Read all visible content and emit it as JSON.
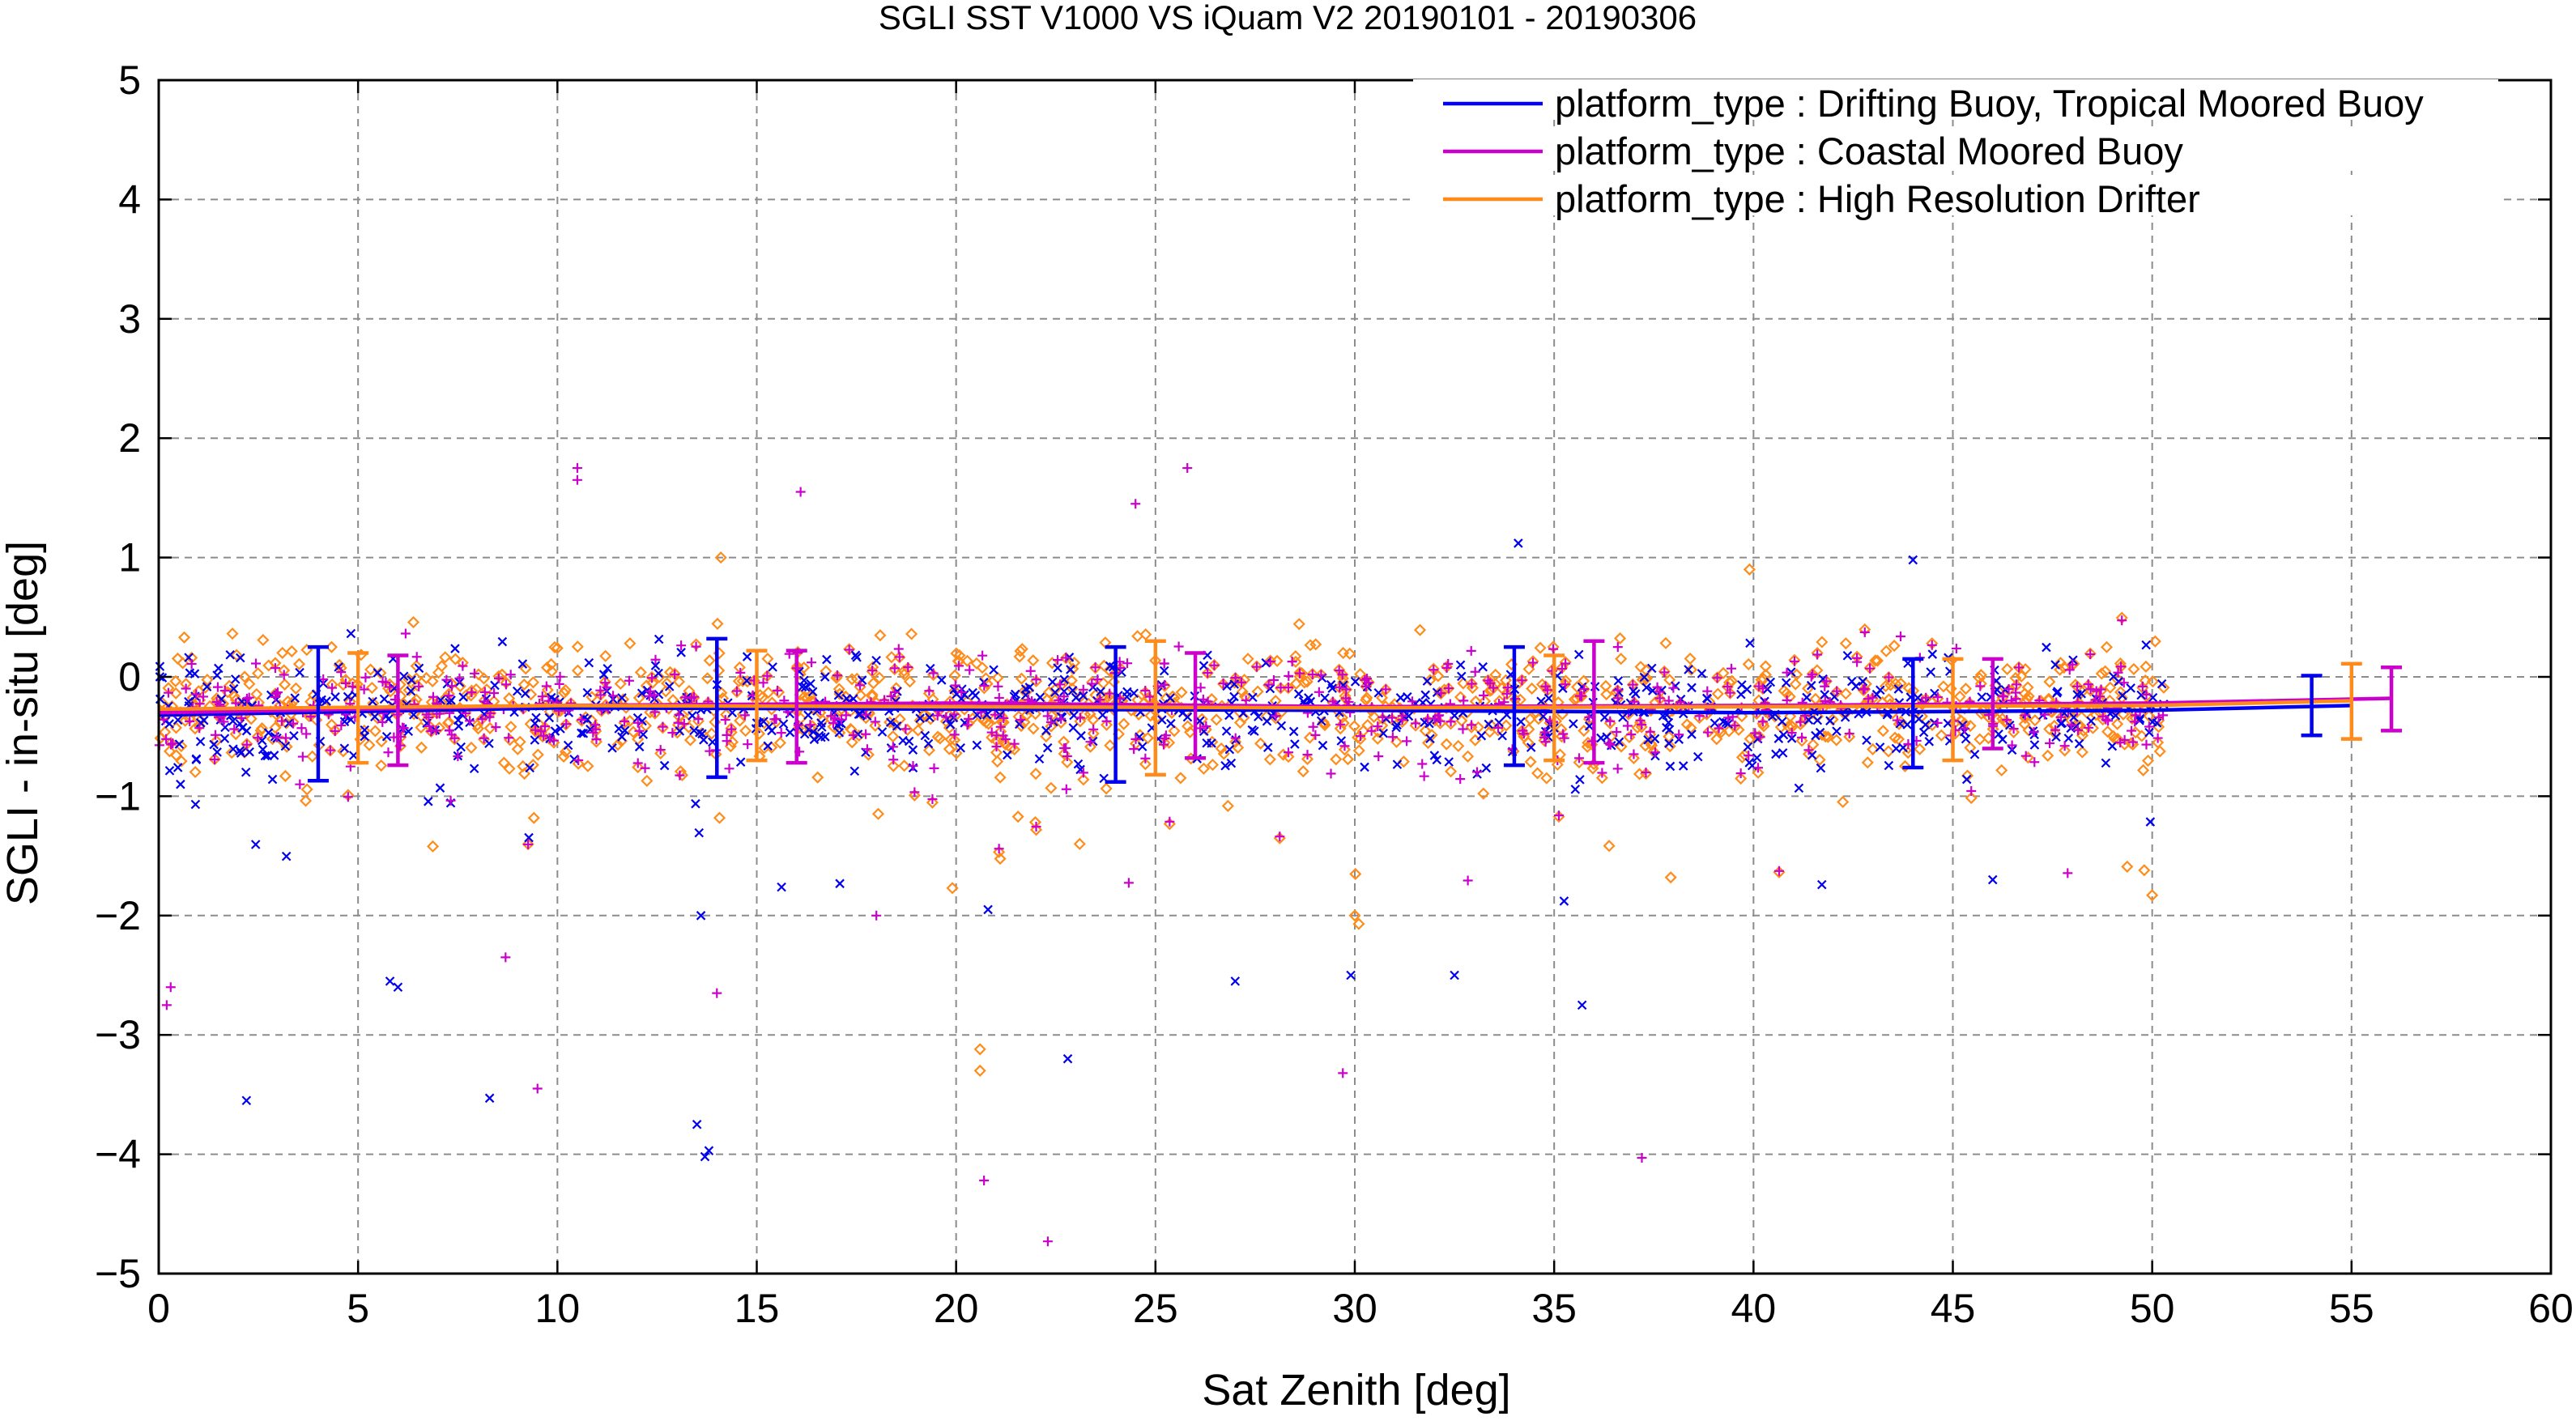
{
  "chart_data": {
    "type": "scatter",
    "title": "SGLI SST V1000 VS iQuam V2 20190101 - 20190306",
    "xlabel": "Sat Zenith [deg]",
    "ylabel": "SGLI - in-situ [deg]",
    "xlim": [
      0,
      60
    ],
    "ylim": [
      -5,
      5
    ],
    "x_ticks": [
      "0",
      "5",
      "10",
      "15",
      "20",
      "25",
      "30",
      "35",
      "40",
      "45",
      "50",
      "55",
      "60"
    ],
    "y_ticks": [
      "5",
      "4",
      "3",
      "2",
      "1",
      "0",
      "−1",
      "−2",
      "−3",
      "−4",
      "−5"
    ],
    "grid": true,
    "legend_position": "top-right",
    "series": [
      {
        "name": "platform_type : Drifting Buoy, Tropical Moored Buoy",
        "color": "#0000ee",
        "marker": "x",
        "mean_line": {
          "x": [
            0,
            10,
            20,
            30,
            40,
            50,
            55
          ],
          "y": [
            -0.32,
            -0.26,
            -0.27,
            -0.28,
            -0.3,
            -0.28,
            -0.24
          ]
        },
        "error_bars": [
          {
            "x": 4,
            "mean": -0.3,
            "low": -0.87,
            "high": 0.25
          },
          {
            "x": 14,
            "mean": -0.26,
            "low": -0.84,
            "high": 0.32
          },
          {
            "x": 24,
            "mean": -0.31,
            "low": -0.88,
            "high": 0.25
          },
          {
            "x": 34,
            "mean": -0.29,
            "low": -0.74,
            "high": 0.25
          },
          {
            "x": 44,
            "mean": -0.3,
            "low": -0.76,
            "high": 0.15
          },
          {
            "x": 54,
            "mean": -0.24,
            "low": -0.49,
            "high": 0.01
          }
        ],
        "outliers": [
          {
            "x": 2.2,
            "y": -3.55
          },
          {
            "x": 8.3,
            "y": -3.53
          },
          {
            "x": 13.5,
            "y": -3.75
          },
          {
            "x": 13.7,
            "y": -4.02
          },
          {
            "x": 13.8,
            "y": -3.97
          },
          {
            "x": 6.0,
            "y": -2.6
          },
          {
            "x": 5.8,
            "y": -2.55
          },
          {
            "x": 13.6,
            "y": -2.0
          },
          {
            "x": 22.8,
            "y": -3.2
          },
          {
            "x": 27.0,
            "y": -2.55
          },
          {
            "x": 29.9,
            "y": -2.5
          },
          {
            "x": 32.5,
            "y": -2.5
          },
          {
            "x": 35.7,
            "y": -2.75
          },
          {
            "x": 34.1,
            "y": 1.12
          },
          {
            "x": 44.0,
            "y": 0.98
          },
          {
            "x": 20.8,
            "y": -1.95
          },
          {
            "x": 46.0,
            "y": -1.7
          }
        ]
      },
      {
        "name": "platform_type : Coastal Moored Buoy",
        "color": "#cc00cc",
        "marker": "+",
        "mean_line": {
          "x": [
            0,
            10,
            20,
            30,
            40,
            50,
            56
          ],
          "y": [
            -0.3,
            -0.24,
            -0.22,
            -0.25,
            -0.24,
            -0.22,
            -0.18
          ]
        },
        "error_bars": [
          {
            "x": 6,
            "mean": -0.28,
            "low": -0.74,
            "high": 0.18
          },
          {
            "x": 16,
            "mean": -0.25,
            "low": -0.72,
            "high": 0.22
          },
          {
            "x": 26,
            "mean": -0.24,
            "low": -0.68,
            "high": 0.2
          },
          {
            "x": 36,
            "mean": -0.26,
            "low": -0.72,
            "high": 0.3
          },
          {
            "x": 46,
            "mean": -0.28,
            "low": -0.6,
            "high": 0.15
          },
          {
            "x": 56,
            "mean": -0.18,
            "low": -0.45,
            "high": 0.08
          }
        ],
        "outliers": [
          {
            "x": 10.5,
            "y": 1.75
          },
          {
            "x": 10.5,
            "y": 1.65
          },
          {
            "x": 16.1,
            "y": 1.55
          },
          {
            "x": 25.8,
            "y": 1.75
          },
          {
            "x": 24.5,
            "y": 1.45
          },
          {
            "x": 0.3,
            "y": -2.6
          },
          {
            "x": 0.2,
            "y": -2.75
          },
          {
            "x": 9.5,
            "y": -3.45
          },
          {
            "x": 20.7,
            "y": -4.22
          },
          {
            "x": 22.3,
            "y": -4.73
          },
          {
            "x": 29.7,
            "y": -3.32
          },
          {
            "x": 37.2,
            "y": -4.03
          },
          {
            "x": 14.0,
            "y": -2.65
          },
          {
            "x": 8.7,
            "y": -2.35
          },
          {
            "x": 18.0,
            "y": -2.0
          }
        ]
      },
      {
        "name": "platform_type : High Resolution Drifter",
        "color": "#ff8c1a",
        "marker": "diamond",
        "mean_line": {
          "x": [
            0,
            10,
            20,
            30,
            40,
            50,
            55
          ],
          "y": [
            -0.27,
            -0.24,
            -0.25,
            -0.26,
            -0.25,
            -0.24,
            -0.2
          ]
        },
        "error_bars": [
          {
            "x": 5,
            "mean": -0.26,
            "low": -0.72,
            "high": 0.2
          },
          {
            "x": 15,
            "mean": -0.24,
            "low": -0.7,
            "high": 0.22
          },
          {
            "x": 25,
            "mean": -0.32,
            "low": -0.82,
            "high": 0.3
          },
          {
            "x": 35,
            "mean": -0.26,
            "low": -0.7,
            "high": 0.18
          },
          {
            "x": 45,
            "mean": -0.28,
            "low": -0.7,
            "high": 0.15
          },
          {
            "x": 55,
            "mean": -0.2,
            "low": -0.52,
            "high": 0.11
          }
        ],
        "outliers": [
          {
            "x": 20.6,
            "y": -3.12
          },
          {
            "x": 20.6,
            "y": -3.3
          },
          {
            "x": 30.0,
            "y": -2.0
          },
          {
            "x": 30.1,
            "y": -2.07
          },
          {
            "x": 49.8,
            "y": -1.62
          },
          {
            "x": 50.0,
            "y": -1.83
          },
          {
            "x": 14.1,
            "y": 1.0
          },
          {
            "x": 39.9,
            "y": 0.9
          },
          {
            "x": 23.1,
            "y": -1.4
          }
        ]
      }
    ]
  }
}
